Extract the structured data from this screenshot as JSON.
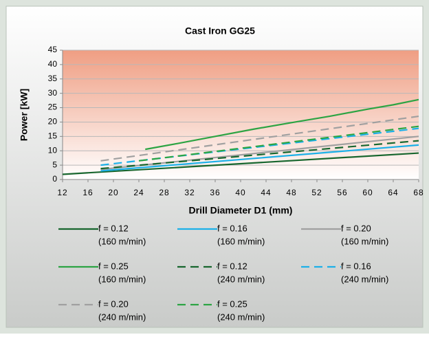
{
  "chart_data": {
    "type": "line",
    "title": "Cast Iron GG25",
    "x_label": "Drill Diameter D1 (mm)",
    "y_label": "Power [kW]",
    "xlim": [
      12,
      68
    ],
    "xticks": [
      12,
      16,
      20,
      24,
      28,
      32,
      36,
      40,
      44,
      48,
      52,
      56,
      60,
      64,
      68
    ],
    "ylim": [
      0,
      45
    ],
    "yticks": [
      0,
      5,
      10,
      15,
      20,
      25,
      30,
      35,
      40,
      45
    ],
    "grid": true,
    "series": [
      {
        "name": "f = 0.12",
        "speed": "(160 m/min)",
        "color": "#17662e",
        "dash": false,
        "x": [
          12,
          68
        ],
        "values": [
          1.8,
          9.2
        ]
      },
      {
        "name": "f = 0.16",
        "speed": "(160 m/min)",
        "color": "#1cb0e8",
        "dash": false,
        "x": [
          18,
          68
        ],
        "values": [
          3,
          12
        ]
      },
      {
        "name": "f = 0.20",
        "speed": "(160 m/min)",
        "color": "#a0a0a0",
        "dash": false,
        "x": [
          18,
          68
        ],
        "values": [
          3.5,
          15
        ]
      },
      {
        "name": "f = 0.25",
        "speed": "(160 m/min)",
        "color": "#2ca443",
        "dash": false,
        "x": [
          25,
          30,
          36,
          42,
          48,
          54,
          60,
          64,
          68
        ],
        "values": [
          10.5,
          12.5,
          15,
          17.5,
          19.8,
          22,
          24.5,
          26,
          27.8
        ]
      },
      {
        "name": "f = 0.12",
        "speed": "(240 m/min)",
        "color": "#17662e",
        "dash": true,
        "x": [
          18,
          68
        ],
        "values": [
          3.8,
          13.5
        ]
      },
      {
        "name": "f = 0.16",
        "speed": "(240 m/min)",
        "color": "#1cb0e8",
        "dash": true,
        "x": [
          18,
          68
        ],
        "values": [
          5,
          17.8
        ]
      },
      {
        "name": "f = 0.20",
        "speed": "(240 m/min)",
        "color": "#a0a0a0",
        "dash": true,
        "x": [
          18,
          68
        ],
        "values": [
          6.5,
          22
        ]
      },
      {
        "name": "f = 0.25",
        "speed": "(240 m/min)",
        "color": "#2ca443",
        "dash": true,
        "x": [
          24,
          68
        ],
        "values": [
          6.5,
          18.5
        ]
      }
    ]
  }
}
